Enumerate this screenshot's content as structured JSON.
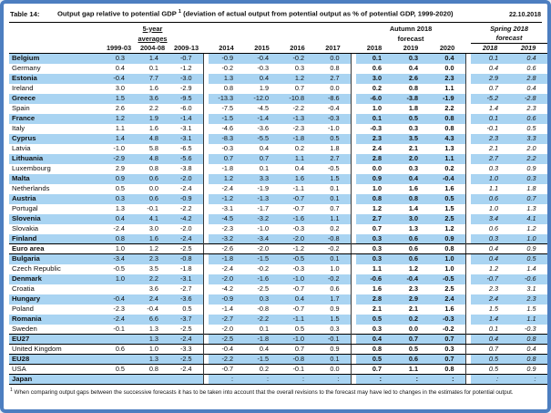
{
  "header": {
    "table_label": "Table 14:",
    "title_main": "Output gap relative to potential GDP",
    "title_sup": "1",
    "title_paren": "(deviation of actual output from potential output as % of potential GDP, 1999-2020)",
    "date": "22.10.2018"
  },
  "columns": {
    "averages": {
      "line1": "5-year",
      "line2": "averages",
      "years": [
        "1999-03",
        "2004-08",
        "2009-13"
      ]
    },
    "history": {
      "years": [
        "2014",
        "2015",
        "2016",
        "2017"
      ]
    },
    "autumn": {
      "line1": "Autumn 2018",
      "line2": "forecast",
      "years": [
        "2018",
        "2019",
        "2020"
      ]
    },
    "spring": {
      "line1": "Spring 2018",
      "line2": "forecast",
      "years": [
        "2018",
        "2019"
      ]
    }
  },
  "table": {
    "rows": [
      {
        "name": "Belgium",
        "values": [
          "0.3",
          "1.4",
          "-0.7",
          "-0.9",
          "-0.4",
          "-0.2",
          "0.0",
          "0.1",
          "0.3",
          "0.4",
          "0.1",
          "0.4"
        ]
      },
      {
        "name": "Germany",
        "values": [
          "0.4",
          "0.1",
          "-1.2",
          "-0.2",
          "-0.3",
          "0.3",
          "0.8",
          "0.6",
          "0.4",
          "0.0",
          "0.4",
          "0.6"
        ]
      },
      {
        "name": "Estonia",
        "values": [
          "-0.4",
          "7.7",
          "-3.0",
          "1.3",
          "0.4",
          "1.2",
          "2.7",
          "3.0",
          "2.6",
          "2.3",
          "2.9",
          "2.8"
        ]
      },
      {
        "name": "Ireland",
        "values": [
          "3.0",
          "1.6",
          "-2.9",
          "0.8",
          "1.9",
          "0.7",
          "0.0",
          "0.2",
          "0.8",
          "1.1",
          "0.7",
          "0.4"
        ]
      },
      {
        "name": "Greece",
        "values": [
          "1.5",
          "3.6",
          "-9.5",
          "-13.3",
          "-12.0",
          "-10.8",
          "-8.6",
          "-6.0",
          "-3.8",
          "-1.9",
          "-5.2",
          "-2.8"
        ]
      },
      {
        "name": "Spain",
        "values": [
          "2.6",
          "2.2",
          "-6.0",
          "-7.5",
          "-4.5",
          "-2.2",
          "-0.4",
          "1.0",
          "1.8",
          "2.2",
          "1.4",
          "2.3"
        ]
      },
      {
        "name": "France",
        "values": [
          "1.2",
          "1.9",
          "-1.4",
          "-1.5",
          "-1.4",
          "-1.3",
          "-0.3",
          "0.1",
          "0.5",
          "0.8",
          "0.1",
          "0.6"
        ]
      },
      {
        "name": "Italy",
        "values": [
          "1.1",
          "1.6",
          "-3.1",
          "-4.6",
          "-3.6",
          "-2.3",
          "-1.0",
          "-0.3",
          "0.3",
          "0.8",
          "-0.1",
          "0.5"
        ]
      },
      {
        "name": "Cyprus",
        "values": [
          "1.4",
          "4.8",
          "-3.1",
          "-8.3",
          "-5.5",
          "-1.8",
          "0.5",
          "2.3",
          "3.5",
          "4.3",
          "2.3",
          "3.3"
        ]
      },
      {
        "name": "Latvia",
        "values": [
          "-1.0",
          "5.8",
          "-6.5",
          "-0.3",
          "0.4",
          "0.2",
          "1.8",
          "2.4",
          "2.1",
          "1.3",
          "2.1",
          "2.0"
        ]
      },
      {
        "name": "Lithuania",
        "values": [
          "-2.9",
          "4.8",
          "-5.6",
          "0.7",
          "0.7",
          "1.1",
          "2.7",
          "2.8",
          "2.0",
          "1.1",
          "2.7",
          "2.2"
        ]
      },
      {
        "name": "Luxembourg",
        "values": [
          "2.9",
          "0.8",
          "-3.8",
          "-1.8",
          "0.1",
          "0.4",
          "-0.5",
          "0.0",
          "0.3",
          "0.2",
          "0.3",
          "0.9"
        ]
      },
      {
        "name": "Malta",
        "values": [
          "0.9",
          "0.6",
          "-2.0",
          "1.2",
          "3.3",
          "1.6",
          "1.5",
          "0.9",
          "0.4",
          "-0.4",
          "1.0",
          "0.3"
        ]
      },
      {
        "name": "Netherlands",
        "values": [
          "0.5",
          "0.0",
          "-2.4",
          "-2.4",
          "-1.9",
          "-1.1",
          "0.1",
          "1.0",
          "1.6",
          "1.6",
          "1.1",
          "1.8"
        ]
      },
      {
        "name": "Austria",
        "values": [
          "0.3",
          "0.6",
          "-0.9",
          "-1.2",
          "-1.3",
          "-0.7",
          "0.1",
          "0.8",
          "0.8",
          "0.5",
          "0.6",
          "0.7"
        ]
      },
      {
        "name": "Portugal",
        "values": [
          "1.3",
          "-0.1",
          "-2.2",
          "-3.1",
          "-1.7",
          "-0.7",
          "0.7",
          "1.2",
          "1.4",
          "1.5",
          "1.0",
          "1.3"
        ]
      },
      {
        "name": "Slovenia",
        "values": [
          "0.4",
          "4.1",
          "-4.2",
          "-4.5",
          "-3.2",
          "-1.6",
          "1.1",
          "2.7",
          "3.0",
          "2.5",
          "3.4",
          "4.1"
        ]
      },
      {
        "name": "Slovakia",
        "values": [
          "-2.4",
          "3.0",
          "-2.0",
          "-2.3",
          "-1.0",
          "-0.3",
          "0.2",
          "0.7",
          "1.3",
          "1.2",
          "0.6",
          "1.2"
        ]
      },
      {
        "name": "Finland",
        "values": [
          "0.8",
          "1.6",
          "-2.4",
          "-3.2",
          "-3.4",
          "-2.0",
          "-0.8",
          "0.3",
          "0.6",
          "0.9",
          "0.3",
          "1.0"
        ]
      },
      {
        "name": "Euro area",
        "rule": true,
        "bold": true,
        "values": [
          "1.0",
          "1.2",
          "-2.5",
          "-2.6",
          "-2.0",
          "-1.2",
          "-0.2",
          "0.3",
          "0.6",
          "0.8",
          "0.4",
          "0.9"
        ]
      },
      {
        "name": "Bulgaria",
        "values": [
          "-3.4",
          "2.3",
          "-0.8",
          "-1.8",
          "-1.5",
          "-0.5",
          "0.1",
          "0.3",
          "0.6",
          "1.0",
          "0.4",
          "0.5"
        ]
      },
      {
        "name": "Czech Republic",
        "values": [
          "-0.5",
          "3.5",
          "-1.8",
          "-2.4",
          "-0.2",
          "-0.3",
          "1.0",
          "1.1",
          "1.2",
          "1.0",
          "1.2",
          "1.4"
        ]
      },
      {
        "name": "Denmark",
        "values": [
          "1.0",
          "2.2",
          "-3.1",
          "-2.0",
          "-1.6",
          "-1.0",
          "-0.2",
          "-0.6",
          "-0.4",
          "-0.5",
          "-0.7",
          "-0.6"
        ]
      },
      {
        "name": "Croatia",
        "values": [
          "",
          "3.6",
          "-2.7",
          "-4.2",
          "-2.5",
          "-0.7",
          "0.6",
          "1.6",
          "2.3",
          "2.5",
          "2.3",
          "3.1"
        ]
      },
      {
        "name": "Hungary",
        "values": [
          "-0.4",
          "2.4",
          "-3.6",
          "-0.9",
          "0.3",
          "0.4",
          "1.7",
          "2.8",
          "2.9",
          "2.4",
          "2.4",
          "2.3"
        ]
      },
      {
        "name": "Poland",
        "values": [
          "-2.3",
          "-0.4",
          "0.5",
          "-1.4",
          "-0.8",
          "-0.7",
          "0.9",
          "2.1",
          "2.1",
          "1.6",
          "1.5",
          "1.5"
        ]
      },
      {
        "name": "Romania",
        "values": [
          "-2.4",
          "6.6",
          "-3.7",
          "-2.7",
          "-2.2",
          "-1.1",
          "1.5",
          "0.5",
          "0.2",
          "-0.3",
          "1.4",
          "1.1"
        ]
      },
      {
        "name": "Sweden",
        "values": [
          "-0.1",
          "1.3",
          "-2.5",
          "-2.0",
          "0.1",
          "0.5",
          "0.3",
          "0.3",
          "0.0",
          "-0.2",
          "0.1",
          "-0.3"
        ]
      },
      {
        "name": "EU27",
        "rule": true,
        "bold": true,
        "values": [
          "",
          "1.3",
          "-2.4",
          "-2.5",
          "-1.8",
          "-1.0",
          "-0.1",
          "0.4",
          "0.7",
          "0.7",
          "0.4",
          "0.8"
        ]
      },
      {
        "name": "United Kingdom",
        "values": [
          "0.6",
          "1.0",
          "-3.3",
          "-0.4",
          "0.4",
          "0.7",
          "0.9",
          "0.8",
          "0.5",
          "0.3",
          "0.7",
          "0.4"
        ]
      },
      {
        "name": "EU28",
        "rule": true,
        "bold": true,
        "values": [
          "",
          "1.3",
          "-2.5",
          "-2.2",
          "-1.5",
          "-0.8",
          "0.1",
          "0.5",
          "0.6",
          "0.7",
          "0.5",
          "0.8"
        ]
      },
      {
        "name": "USA",
        "values": [
          "0.5",
          "0.8",
          "-2.4",
          "-0.7",
          "0.2",
          "-0.1",
          "0.0",
          "0.7",
          "1.1",
          "0.8",
          "0.5",
          "0.9"
        ]
      },
      {
        "name": "Japan",
        "rule": true,
        "values": [
          "",
          "",
          "",
          ":",
          ":",
          ":",
          ":",
          ":",
          ":",
          ":",
          ":",
          ":"
        ]
      }
    ]
  },
  "footnote": {
    "mark": "1",
    "text": "When comparing output gaps between the successive forecasts it has to be taken into account that the overall revisions to the forecast may have led to changes in the estimates for potential output."
  }
}
